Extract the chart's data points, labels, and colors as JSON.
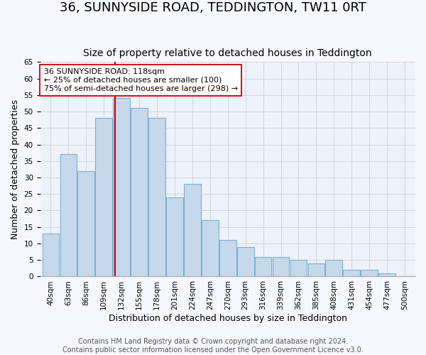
{
  "title": "36, SUNNYSIDE ROAD, TEDDINGTON, TW11 0RT",
  "subtitle": "Size of property relative to detached houses in Teddington",
  "xlabel": "Distribution of detached houses by size in Teddington",
  "ylabel": "Number of detached properties",
  "footer_line1": "Contains HM Land Registry data © Crown copyright and database right 2024.",
  "footer_line2": "Contains public sector information licensed under the Open Government Licence v3.0.",
  "bar_labels": [
    "40sqm",
    "63sqm",
    "86sqm",
    "109sqm",
    "132sqm",
    "155sqm",
    "178sqm",
    "201sqm",
    "224sqm",
    "247sqm",
    "270sqm",
    "293sqm",
    "316sqm",
    "339sqm",
    "362sqm",
    "385sqm",
    "408sqm",
    "431sqm",
    "454sqm",
    "477sqm",
    "500sqm"
  ],
  "bar_values": [
    13,
    37,
    32,
    48,
    54,
    51,
    48,
    24,
    28,
    17,
    11,
    9,
    6,
    6,
    5,
    4,
    5,
    2,
    2,
    1,
    0
  ],
  "bar_color": "#c5d9ea",
  "bar_edgecolor": "#7bafd4",
  "grid_color": "#d0d0d0",
  "vline_index": 3.65,
  "vline_color": "#cc0000",
  "annotation_text": "36 SUNNYSIDE ROAD: 118sqm\n← 25% of detached houses are smaller (100)\n75% of semi-detached houses are larger (298) →",
  "annotation_box_edgecolor": "#cc0000",
  "annotation_box_facecolor": "#ffffff",
  "ylim": [
    0,
    65
  ],
  "yticks": [
    0,
    5,
    10,
    15,
    20,
    25,
    30,
    35,
    40,
    45,
    50,
    55,
    60,
    65
  ],
  "background_color": "#f7f7ff",
  "plot_background": "#eef2fb",
  "title_fontsize": 13,
  "subtitle_fontsize": 10,
  "axis_label_fontsize": 9,
  "tick_fontsize": 7.5,
  "footer_fontsize": 7,
  "annotation_fontsize": 8
}
